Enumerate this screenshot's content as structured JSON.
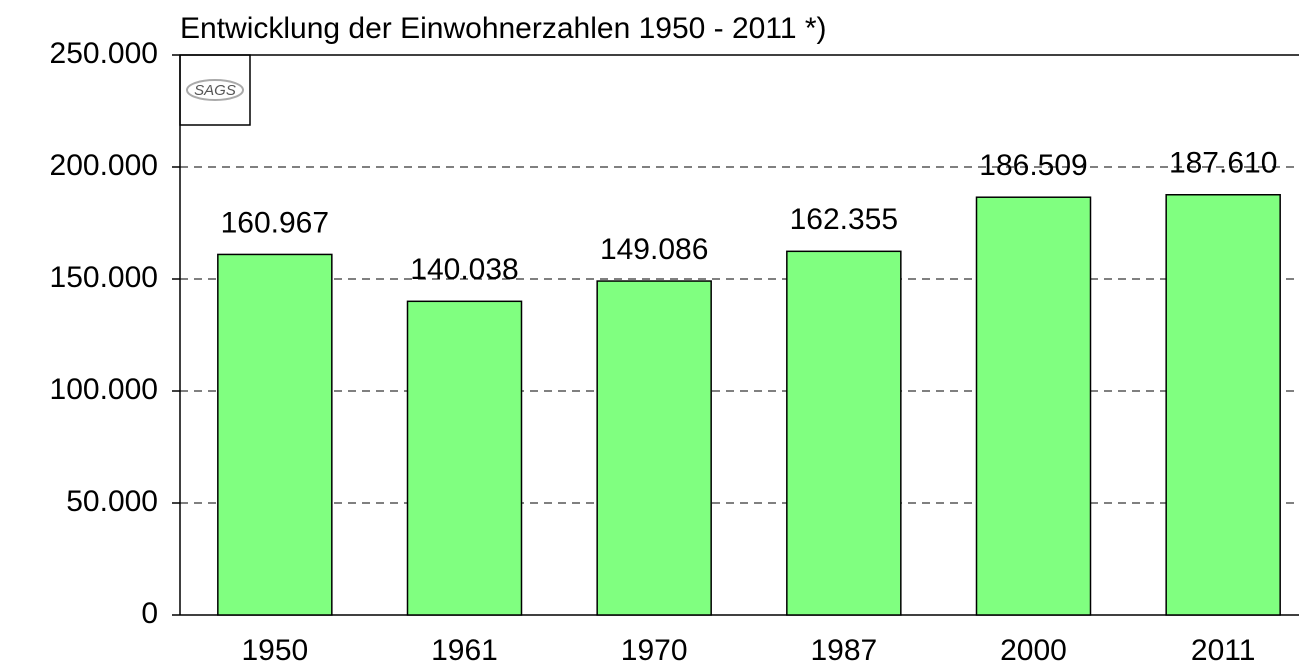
{
  "chart_data": {
    "type": "bar",
    "title": "Entwicklung der Einwohnerzahlen 1950 - 2011 *)",
    "logo": "SAGS",
    "categories": [
      "1950",
      "1961",
      "1970",
      "1987",
      "2000",
      "2011"
    ],
    "values": [
      160967,
      140038,
      149086,
      162355,
      186509,
      187610
    ],
    "value_labels": [
      "160.967",
      "140.038",
      "149.086",
      "162.355",
      "186.509",
      "187.610"
    ],
    "color": "#80ff80",
    "ylim": [
      0,
      250000
    ],
    "yticks": [
      0,
      {
        "value": 50000,
        "label": "50.000"
      },
      {
        "value": 100000,
        "label": "100.000"
      },
      {
        "value": 150000,
        "label": "150.000"
      },
      {
        "value": 200000,
        "label": "200.000"
      },
      {
        "value": 250000,
        "label": "250.000"
      }
    ],
    "grid": true
  }
}
